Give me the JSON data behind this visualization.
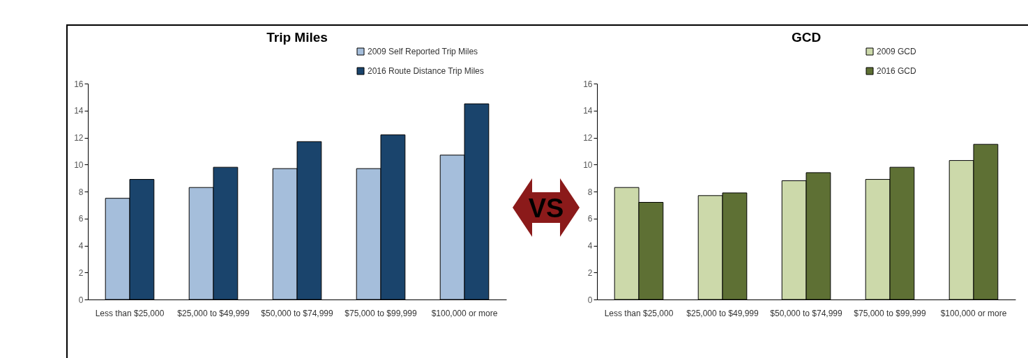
{
  "chart_data": [
    {
      "type": "bar",
      "title": "Trip Miles",
      "categories": [
        "Less than $25,000",
        "$25,000 to $49,999",
        "$50,000 to $74,999",
        "$75,000 to $99,999",
        "$100,000 or more"
      ],
      "series": [
        {
          "name": "2009 Self Reported Trip Miles",
          "color": "#a5bedb",
          "values": [
            7.5,
            8.3,
            9.7,
            9.7,
            10.7
          ]
        },
        {
          "name": "2016 Route Distance Trip Miles",
          "color": "#1a446c",
          "values": [
            8.9,
            9.8,
            11.7,
            12.2,
            14.5
          ]
        }
      ],
      "ylim": [
        0,
        16
      ],
      "yticks": [
        0,
        2,
        4,
        6,
        8,
        10,
        12,
        14,
        16
      ],
      "legend": "top right",
      "annotations": [
        "VS"
      ]
    },
    {
      "type": "bar",
      "title": "GCD",
      "categories": [
        "Less than $25,000",
        "$25,000 to $49,999",
        "$50,000 to $74,999",
        "$75,000 to $99,999",
        "$100,000 or more"
      ],
      "series": [
        {
          "name": "2009 GCD",
          "color": "#ccd9aa",
          "values": [
            8.3,
            7.7,
            8.8,
            8.9,
            10.3
          ]
        },
        {
          "name": "2016 GCD",
          "color": "#5e7034",
          "values": [
            7.2,
            7.9,
            9.4,
            9.8,
            11.5
          ]
        }
      ],
      "ylim": [
        0,
        16
      ],
      "yticks": [
        0,
        2,
        4,
        6,
        8,
        10,
        12,
        14,
        16
      ],
      "legend": "top right"
    }
  ]
}
